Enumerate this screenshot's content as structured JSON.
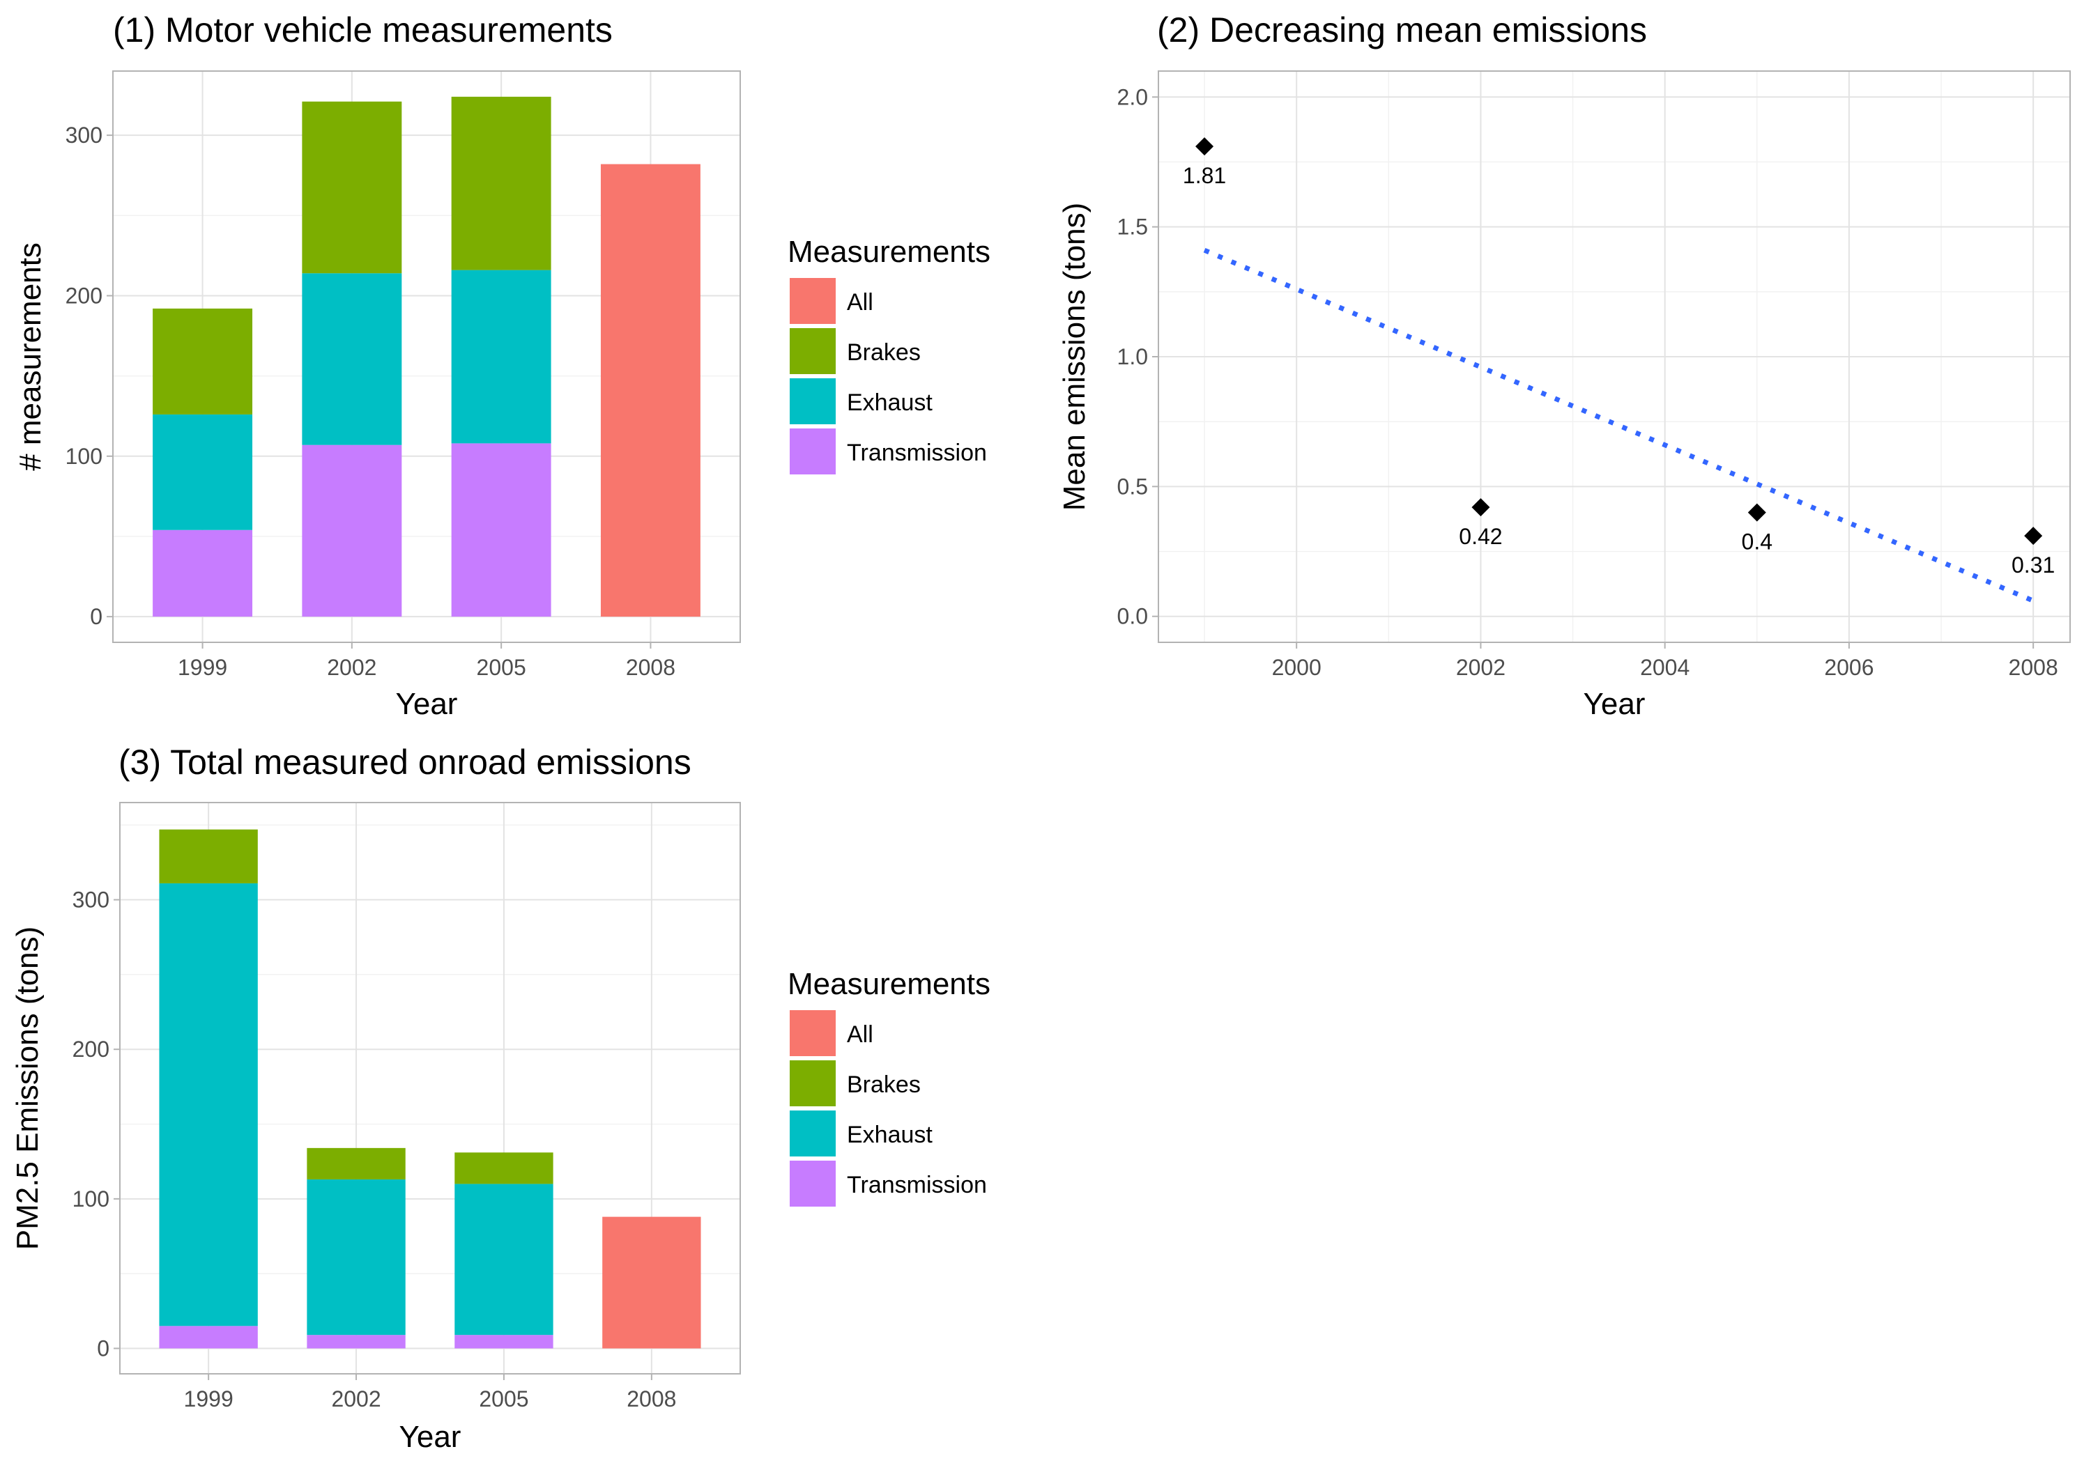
{
  "colors": {
    "All": "#F8766D",
    "Brakes": "#7CAE00",
    "Exhaust": "#00BFC4",
    "Transmission": "#C77CFF",
    "trend": "#3366FF",
    "point": "#000000"
  },
  "chart_data": [
    {
      "type": "bar",
      "stacked": true,
      "title": "(1) Motor vehicle measurements",
      "xlabel": "Year",
      "ylabel": "# measurements",
      "categories": [
        "1999",
        "2002",
        "2005",
        "2008"
      ],
      "ylim": [
        -16,
        340
      ],
      "yticks": [
        0,
        100,
        200,
        300
      ],
      "series": [
        {
          "name": "All",
          "values": [
            0,
            0,
            0,
            282
          ]
        },
        {
          "name": "Brakes",
          "values": [
            66,
            107,
            108,
            0
          ]
        },
        {
          "name": "Exhaust",
          "values": [
            72,
            107,
            108,
            0
          ]
        },
        {
          "name": "Transmission",
          "values": [
            54,
            107,
            108,
            0
          ]
        }
      ],
      "stack_order": [
        "Transmission",
        "Exhaust",
        "Brakes",
        "All"
      ],
      "legend": {
        "title": "Measurements",
        "position": "right",
        "entries": [
          "All",
          "Brakes",
          "Exhaust",
          "Transmission"
        ]
      },
      "grid": true
    },
    {
      "type": "scatter",
      "title": "(2) Decreasing mean emissions",
      "xlabel": "Year",
      "ylabel": "Mean emissions (tons)",
      "x": [
        1999,
        2002,
        2005,
        2008
      ],
      "y": [
        1.81,
        0.42,
        0.4,
        0.31
      ],
      "point_labels": [
        "1.81",
        "0.42",
        "0.4",
        "0.31"
      ],
      "trend_line": {
        "x": [
          1999,
          2008
        ],
        "y": [
          1.41,
          0.06
        ],
        "style": "dotted"
      },
      "xlim": [
        1998.5,
        2008.4
      ],
      "ylim": [
        -0.1,
        2.1
      ],
      "xticks": [
        2000,
        2002,
        2004,
        2006,
        2008
      ],
      "yticks": [
        0.0,
        0.5,
        1.0,
        1.5,
        2.0
      ],
      "ytick_labels": [
        "0.0",
        "0.5",
        "1.0",
        "1.5",
        "2.0"
      ],
      "grid": true
    },
    {
      "type": "bar",
      "stacked": true,
      "title": "(3) Total measured onroad emissions",
      "xlabel": "Year",
      "ylabel": "PM2.5 Emissions (tons)",
      "categories": [
        "1999",
        "2002",
        "2005",
        "2008"
      ],
      "ylim": [
        -17,
        365
      ],
      "yticks": [
        0,
        100,
        200,
        300
      ],
      "series": [
        {
          "name": "All",
          "values": [
            0,
            0,
            0,
            88
          ]
        },
        {
          "name": "Brakes",
          "values": [
            36,
            21,
            21,
            0
          ]
        },
        {
          "name": "Exhaust",
          "values": [
            296,
            104,
            101,
            0
          ]
        },
        {
          "name": "Transmission",
          "values": [
            15,
            9,
            9,
            0
          ]
        }
      ],
      "stack_order": [
        "Transmission",
        "Exhaust",
        "Brakes",
        "All"
      ],
      "legend": {
        "title": "Measurements",
        "position": "right",
        "entries": [
          "All",
          "Brakes",
          "Exhaust",
          "Transmission"
        ]
      },
      "grid": true
    }
  ]
}
